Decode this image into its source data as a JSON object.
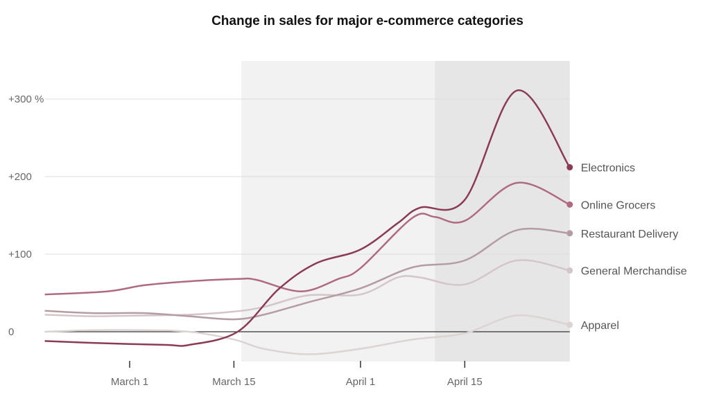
{
  "chart_data": {
    "type": "line",
    "title": "Change in sales for major e-commerce categories",
    "xlabel": "",
    "ylabel": "",
    "x_unit": "days since March 1",
    "xlim": [
      -11.4,
      59.1
    ],
    "ylim": [
      -30,
      350
    ],
    "yticks": [
      {
        "value": 0,
        "label": "0"
      },
      {
        "value": 100,
        "label": "+100"
      },
      {
        "value": 200,
        "label": "+200"
      },
      {
        "value": 300,
        "label": "+300 %"
      }
    ],
    "xticks": [
      {
        "value": 0,
        "label": "March 1"
      },
      {
        "value": 14,
        "label": "March 15"
      },
      {
        "value": 31,
        "label": "April 1"
      },
      {
        "value": 45,
        "label": "April 15"
      }
    ],
    "shaded_periods": [
      {
        "from": 15,
        "to": 59.1,
        "color": "#f2f2f2"
      },
      {
        "from": 41,
        "to": 59.1,
        "color": "#e6e6e6"
      }
    ],
    "grid": true,
    "legend": "right (direct labels at line ends)",
    "series": [
      {
        "name": "Electronics",
        "color": "#8b3a55",
        "points": [
          [
            -11.4,
            -12
          ],
          [
            -3,
            -15
          ],
          [
            5,
            -17
          ],
          [
            8,
            -17
          ],
          [
            14.5,
            0
          ],
          [
            20,
            55
          ],
          [
            25,
            88
          ],
          [
            31,
            106
          ],
          [
            36,
            140
          ],
          [
            39,
            160
          ],
          [
            45,
            170
          ],
          [
            52,
            311
          ],
          [
            59.1,
            212
          ]
        ]
      },
      {
        "name": "Online Grocers",
        "color": "#b06a80",
        "points": [
          [
            -11.4,
            48
          ],
          [
            -3,
            52
          ],
          [
            2,
            60
          ],
          [
            8,
            65
          ],
          [
            14.5,
            68
          ],
          [
            17,
            67
          ],
          [
            23,
            52
          ],
          [
            28,
            68
          ],
          [
            31,
            82
          ],
          [
            38,
            147
          ],
          [
            41,
            148
          ],
          [
            45,
            143
          ],
          [
            52,
            192
          ],
          [
            59.1,
            164
          ]
        ]
      },
      {
        "name": "Restaurant Delivery",
        "color": "#b49ca2",
        "points": [
          [
            -11.4,
            27
          ],
          [
            -5,
            24
          ],
          [
            2,
            24
          ],
          [
            8,
            20
          ],
          [
            14,
            16
          ],
          [
            18,
            22
          ],
          [
            24,
            38
          ],
          [
            31,
            56
          ],
          [
            38,
            83
          ],
          [
            45,
            92
          ],
          [
            52,
            131
          ],
          [
            59.1,
            127
          ]
        ]
      },
      {
        "name": "General Merchandise",
        "color": "#d4c6c8",
        "points": [
          [
            -11.4,
            22
          ],
          [
            -5,
            20
          ],
          [
            2,
            21
          ],
          [
            8,
            22
          ],
          [
            14,
            26
          ],
          [
            18,
            32
          ],
          [
            24,
            47
          ],
          [
            31,
            48
          ],
          [
            36,
            70
          ],
          [
            39,
            70
          ],
          [
            45,
            61
          ],
          [
            52,
            92
          ],
          [
            59.1,
            79
          ]
        ]
      },
      {
        "name": "Apparel",
        "color": "#ddd3d3",
        "points": [
          [
            -11.4,
            0
          ],
          [
            -5,
            2
          ],
          [
            2,
            2
          ],
          [
            8,
            0
          ],
          [
            14,
            -10
          ],
          [
            18,
            -22
          ],
          [
            24,
            -29
          ],
          [
            31,
            -22
          ],
          [
            38,
            -10
          ],
          [
            45,
            -2
          ],
          [
            52,
            21
          ],
          [
            59.1,
            9
          ]
        ]
      }
    ]
  }
}
